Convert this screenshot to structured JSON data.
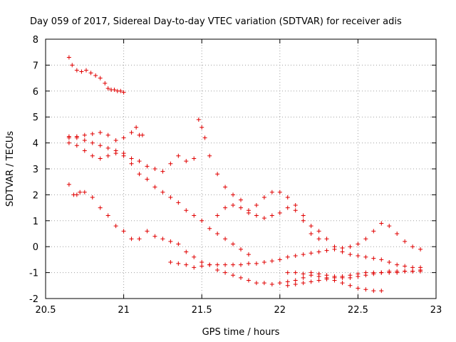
{
  "chart_data": {
    "type": "scatter",
    "title": "Day 059 of 2017, Sidereal Day-to-day VTEC variation (SDTVAR) for receiver adis",
    "xlabel": "GPS time / hours",
    "ylabel": "SDTVAR / TECUs",
    "xlim": [
      20.5,
      23
    ],
    "ylim": [
      -2,
      8
    ],
    "xticks": [
      "20.5",
      "21",
      "21.5",
      "22",
      "22.5",
      "23"
    ],
    "yticks": [
      "-2",
      "-1",
      "0",
      "1",
      "2",
      "3",
      "4",
      "5",
      "6",
      "7",
      "8"
    ],
    "grid": true,
    "marker": "plus",
    "color": "#e00000",
    "series": [
      {
        "name": "track-1",
        "x": [
          20.65,
          20.67,
          20.7,
          20.73,
          20.76,
          20.79,
          20.82,
          20.85,
          20.88,
          20.9,
          20.92,
          20.94,
          20.96,
          20.98,
          21.0
        ],
        "y": [
          7.3,
          7.0,
          6.8,
          6.75,
          6.8,
          6.7,
          6.6,
          6.5,
          6.3,
          6.1,
          6.05,
          6.05,
          6.0,
          6.0,
          5.95
        ]
      },
      {
        "name": "track-2",
        "x": [
          20.65,
          20.7,
          20.75,
          20.8,
          20.85,
          20.9,
          20.95,
          21.0,
          21.05,
          21.1,
          21.15,
          21.2,
          21.25,
          21.3,
          21.35,
          21.4,
          21.45,
          21.5,
          21.55,
          21.6,
          21.65,
          21.7,
          21.75,
          21.8
        ],
        "y": [
          4.25,
          4.2,
          4.1,
          4.0,
          3.9,
          3.8,
          3.7,
          3.5,
          3.2,
          2.8,
          2.6,
          2.3,
          2.1,
          1.9,
          1.7,
          1.4,
          1.2,
          1.0,
          0.7,
          0.5,
          0.3,
          0.1,
          -0.1,
          -0.3
        ]
      },
      {
        "name": "track-3",
        "x": [
          20.65,
          20.7,
          20.75,
          20.8,
          20.85,
          20.9,
          20.95,
          21.0,
          21.05,
          21.1,
          21.15,
          21.2,
          21.25,
          21.3,
          21.35,
          21.4,
          21.45,
          21.48,
          21.5,
          21.52,
          21.55,
          21.6,
          21.65,
          21.7,
          21.75,
          21.8,
          21.85,
          21.9,
          21.95,
          22.0,
          22.05,
          22.1,
          22.15,
          22.2,
          22.25
        ],
        "y": [
          4.0,
          3.9,
          3.7,
          3.5,
          3.4,
          3.5,
          3.6,
          3.6,
          3.4,
          3.3,
          3.1,
          3.0,
          2.9,
          3.2,
          3.5,
          3.3,
          3.4,
          4.9,
          4.6,
          4.2,
          3.5,
          2.8,
          2.3,
          2.0,
          1.8,
          1.3,
          1.2,
          1.1,
          1.2,
          1.3,
          1.5,
          1.4,
          1.0,
          0.5,
          0.3
        ]
      },
      {
        "name": "track-4",
        "x": [
          20.65,
          20.7,
          20.75,
          20.8,
          20.85,
          20.9,
          20.95,
          21.0,
          21.05,
          21.08,
          21.1,
          21.12
        ],
        "y": [
          4.2,
          4.25,
          4.3,
          4.35,
          4.4,
          4.3,
          4.1,
          4.2,
          4.4,
          4.6,
          4.3,
          4.3
        ]
      },
      {
        "name": "track-5",
        "x": [
          20.65,
          20.68,
          20.7,
          20.72,
          20.75,
          20.8,
          20.85,
          20.9,
          20.95,
          21.0,
          21.05,
          21.1,
          21.15,
          21.2,
          21.25,
          21.3,
          21.35,
          21.4,
          21.45,
          21.5,
          21.55,
          21.6,
          21.65,
          21.7,
          21.75,
          21.8,
          21.85,
          21.9,
          21.95,
          22.0,
          22.05,
          22.1,
          22.15,
          22.2,
          22.25,
          22.3,
          22.35,
          22.4,
          22.45,
          22.5,
          22.55,
          22.6,
          22.65
        ],
        "y": [
          2.4,
          2.0,
          2.0,
          2.1,
          2.1,
          1.9,
          1.5,
          1.2,
          0.8,
          0.6,
          0.3,
          0.3,
          0.6,
          0.4,
          0.3,
          0.2,
          0.1,
          -0.2,
          -0.4,
          -0.6,
          -0.7,
          -0.9,
          -1.0,
          -1.1,
          -1.2,
          -1.3,
          -1.4,
          -1.4,
          -1.45,
          -1.4,
          -1.35,
          -1.3,
          -1.2,
          -1.1,
          -1.15,
          -1.2,
          -1.3,
          -1.4,
          -1.5,
          -1.6,
          -1.65,
          -1.7,
          -1.7
        ]
      },
      {
        "name": "track-6",
        "x": [
          21.3,
          21.35,
          21.4,
          21.45,
          21.5,
          21.55,
          21.6,
          21.65,
          21.7,
          21.75,
          21.8,
          21.85,
          21.9,
          21.95,
          22.0,
          22.05,
          22.1,
          22.15,
          22.2,
          22.25,
          22.3,
          22.35,
          22.4,
          22.45,
          22.5,
          22.55,
          22.6,
          22.65,
          22.7,
          22.75,
          22.8,
          22.85,
          22.9
        ],
        "y": [
          -0.6,
          -0.65,
          -0.7,
          -0.8,
          -0.75,
          -0.7,
          -0.7,
          -0.7,
          -0.7,
          -0.7,
          -0.65,
          -0.65,
          -0.6,
          -0.55,
          -0.5,
          -0.4,
          -0.35,
          -0.3,
          -0.25,
          -0.2,
          -0.15,
          -0.1,
          -0.05,
          0.0,
          0.1,
          0.3,
          0.6,
          0.9,
          0.8,
          0.5,
          0.2,
          0.0,
          -0.1
        ]
      },
      {
        "name": "track-7",
        "x": [
          21.6,
          21.65,
          21.7,
          21.75,
          21.8,
          21.85,
          21.9,
          21.95,
          22.0,
          22.05,
          22.1,
          22.15,
          22.2,
          22.25,
          22.3,
          22.35,
          22.4,
          22.45,
          22.5,
          22.55,
          22.6,
          22.65,
          22.7,
          22.75,
          22.8,
          22.85,
          22.9
        ],
        "y": [
          1.2,
          1.5,
          1.6,
          1.5,
          1.4,
          1.6,
          1.9,
          2.1,
          2.1,
          1.9,
          1.6,
          1.2,
          0.8,
          0.6,
          0.3,
          0.0,
          -0.2,
          -0.3,
          -0.35,
          -0.4,
          -0.45,
          -0.5,
          -0.6,
          -0.7,
          -0.75,
          -0.8,
          -0.8
        ]
      },
      {
        "name": "track-8",
        "x": [
          22.05,
          22.1,
          22.15,
          22.2,
          22.25,
          22.3,
          22.35,
          22.4,
          22.45,
          22.5,
          22.55,
          22.6,
          22.65,
          22.7,
          22.75,
          22.8,
          22.85,
          22.9
        ],
        "y": [
          -1.5,
          -1.45,
          -1.4,
          -1.35,
          -1.3,
          -1.25,
          -1.2,
          -1.15,
          -1.1,
          -1.05,
          -1.0,
          -1.0,
          -1.0,
          -0.95,
          -0.95,
          -0.95,
          -0.95,
          -0.95
        ]
      },
      {
        "name": "track-9",
        "x": [
          22.05,
          22.1,
          22.15,
          22.2,
          22.25,
          22.3,
          22.35,
          22.4,
          22.45,
          22.5,
          22.55,
          22.6,
          22.65,
          22.7,
          22.75,
          22.8,
          22.85,
          22.9
        ],
        "y": [
          -1.0,
          -1.0,
          -1.05,
          -1.0,
          -1.05,
          -1.1,
          -1.15,
          -1.2,
          -1.2,
          -1.15,
          -1.1,
          -1.05,
          -1.0,
          -1.0,
          -1.0,
          -0.95,
          -0.95,
          -0.9
        ]
      }
    ]
  }
}
